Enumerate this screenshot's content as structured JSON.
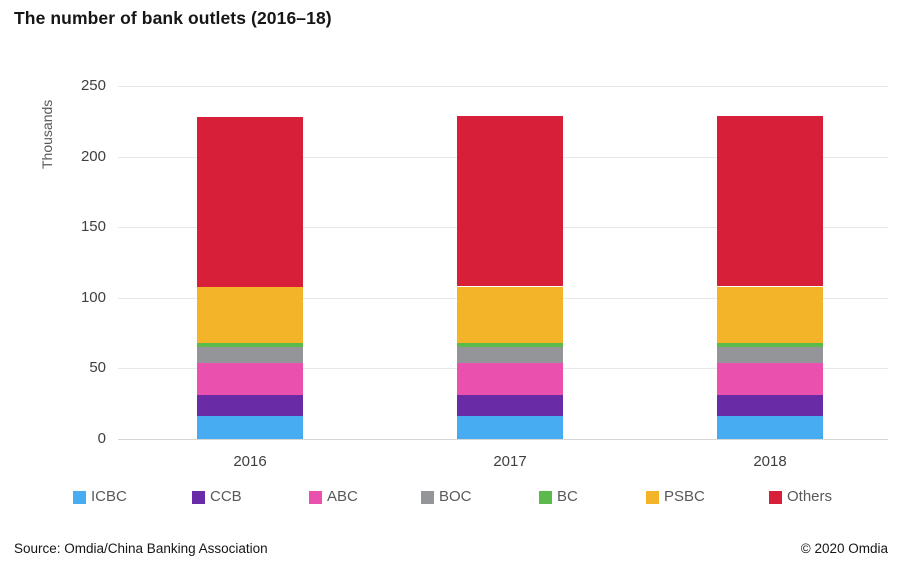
{
  "title": "The number of bank outlets (2016–18)",
  "footer": {
    "source": "Source: Omdia/China Banking Association",
    "copyright": "© 2020 Omdia"
  },
  "chart_data": {
    "type": "bar",
    "stacked": true,
    "title": "The number of bank outlets (2016–18)",
    "categories": [
      "2016",
      "2017",
      "2018"
    ],
    "series": [
      {
        "name": "ICBC",
        "color": "#48acf2",
        "values": [
          16,
          16,
          16
        ]
      },
      {
        "name": "CCB",
        "color": "#6a2ba6",
        "values": [
          15,
          15,
          15
        ]
      },
      {
        "name": "ABC",
        "color": "#ea50ae",
        "values": [
          23,
          23,
          23
        ]
      },
      {
        "name": "BOC",
        "color": "#949598",
        "values": [
          11,
          11,
          11
        ]
      },
      {
        "name": "BC",
        "color": "#5cb94c",
        "values": [
          3,
          3,
          3
        ]
      },
      {
        "name": "PSBC",
        "color": "#f4b42a",
        "values": [
          40,
          40,
          40
        ]
      },
      {
        "name": "Others",
        "color": "#d71f3a",
        "values": [
          120,
          121,
          121
        ]
      }
    ],
    "totals": [
      228,
      229,
      229
    ],
    "xlabel": "",
    "ylabel": "Thousands",
    "yticks": [
      0,
      50,
      100,
      150,
      200,
      250
    ],
    "ylim": [
      0,
      250
    ],
    "grid": true,
    "legend_position": "bottom"
  }
}
